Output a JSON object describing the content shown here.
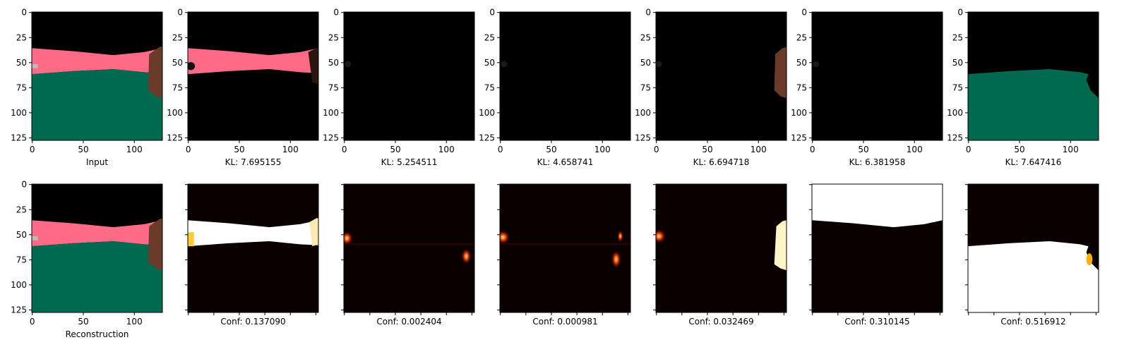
{
  "chart_data": {
    "type": "image-grid",
    "image_size": 128,
    "axis_ticks": [
      0,
      25,
      50,
      75,
      100,
      125
    ],
    "x_ticks": [
      0,
      50,
      100
    ],
    "colors": {
      "pink": "#ff6a86",
      "green": "#006a50",
      "brown": "#6a3a2a",
      "heat_low": "#0a0000",
      "heat_high": "#ffffff"
    },
    "rows": [
      {
        "row": "top",
        "panels": [
          {
            "caption": "Input",
            "content": "scene"
          },
          {
            "caption": "KL: 7.695155",
            "content": "pink-band"
          },
          {
            "caption": "KL: 5.254511",
            "content": "dark"
          },
          {
            "caption": "KL: 4.658741",
            "content": "dark"
          },
          {
            "caption": "KL: 6.694718",
            "content": "brown-object"
          },
          {
            "caption": "KL: 6.381958",
            "content": "dark"
          },
          {
            "caption": "KL: 7.647416",
            "content": "green-floor"
          }
        ]
      },
      {
        "row": "bottom",
        "panels": [
          {
            "caption": "Reconstruction",
            "content": "scene"
          },
          {
            "caption": "Conf: 0.137090",
            "content": "mask-band"
          },
          {
            "caption": "Conf: 0.002404",
            "content": "mask-spots"
          },
          {
            "caption": "Conf: 0.000981",
            "content": "mask-spots2"
          },
          {
            "caption": "Conf: 0.032469",
            "content": "mask-object"
          },
          {
            "caption": "Conf: 0.310145",
            "content": "mask-top"
          },
          {
            "caption": "Conf: 0.516912",
            "content": "mask-floor"
          }
        ]
      }
    ]
  }
}
